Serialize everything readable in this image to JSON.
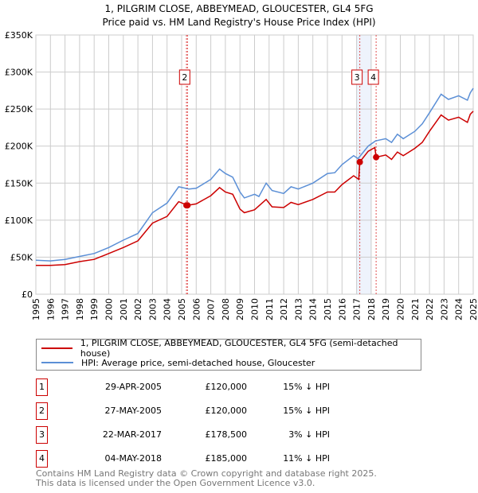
{
  "title": "1, PILGRIM CLOSE, ABBEYMEAD, GLOUCESTER, GL4 5FG",
  "subtitle": "Price paid vs. HM Land Registry's House Price Index (HPI)",
  "chart_data": {
    "type": "line",
    "ylim": [
      0,
      350000
    ],
    "xlim": [
      1995,
      2025
    ],
    "y_ticks": [
      0,
      50000,
      100000,
      150000,
      200000,
      250000,
      300000,
      350000
    ],
    "y_tick_labels": [
      "£0",
      "£50K",
      "£100K",
      "£150K",
      "£200K",
      "£250K",
      "£300K",
      "£350K"
    ],
    "x_ticks": [
      "1995",
      "1996",
      "1997",
      "1998",
      "1999",
      "2000",
      "2001",
      "2002",
      "2003",
      "2004",
      "2005",
      "2006",
      "2007",
      "2008",
      "2009",
      "2010",
      "2011",
      "2012",
      "2013",
      "2014",
      "2015",
      "2016",
      "2017",
      "2018",
      "2019",
      "2020",
      "2021",
      "2022",
      "2023",
      "2024",
      "2025"
    ],
    "grid": true,
    "colors": {
      "property": "#cc0000",
      "hpi": "#5b8fd6",
      "band": "#eef3fc",
      "marker_line": "#e05050"
    },
    "series": [
      {
        "name": "1, PILGRIM CLOSE, ABBEYMEAD, GLOUCESTER, GL4 5FG (semi-detached house)",
        "x": [
          1995,
          1996,
          1997,
          1998,
          1999,
          2000,
          2001,
          2002,
          2003,
          2004,
          2004.8,
          2005.4,
          2006,
          2007,
          2007.6,
          2008,
          2008.5,
          2009,
          2009.3,
          2010,
          2010.8,
          2011.2,
          2012,
          2012.5,
          2013,
          2014,
          2015,
          2015.5,
          2016,
          2016.8,
          2017.15,
          2017.22,
          2017.8,
          2018.25,
          2018.34,
          2019,
          2019.4,
          2019.8,
          2020.2,
          2021,
          2021.5,
          2022,
          2022.8,
          2023.3,
          2024,
          2024.6,
          2024.8,
          2025
        ],
        "y": [
          39000,
          39000,
          40000,
          44000,
          47000,
          55000,
          63000,
          72000,
          96000,
          105000,
          125000,
          120000,
          122000,
          133000,
          144000,
          138000,
          135000,
          115000,
          110000,
          114000,
          128000,
          118000,
          117000,
          124000,
          121000,
          128000,
          138000,
          138000,
          148000,
          160000,
          155000,
          178500,
          193000,
          198000,
          185000,
          188000,
          182000,
          192000,
          187000,
          197000,
          205000,
          220000,
          242000,
          235000,
          239000,
          232000,
          243000,
          247000
        ]
      },
      {
        "name": "HPI: Average price, semi-detached house, Gloucester",
        "x": [
          1995,
          1996,
          1997,
          1998,
          1999,
          2000,
          2001,
          2002,
          2003,
          2004,
          2004.8,
          2005.5,
          2006,
          2007,
          2007.6,
          2008,
          2008.5,
          2009,
          2009.3,
          2010,
          2010.3,
          2010.8,
          2011.2,
          2012,
          2012.5,
          2013,
          2014,
          2015,
          2015.5,
          2016,
          2016.8,
          2017.1,
          2017.8,
          2018.3,
          2019,
          2019.4,
          2019.8,
          2020.2,
          2021,
          2021.5,
          2022,
          2022.8,
          2023.3,
          2024,
          2024.6,
          2024.8,
          2025
        ],
        "y": [
          46000,
          45000,
          47000,
          51000,
          55000,
          63000,
          73000,
          82000,
          110000,
          123000,
          145000,
          142000,
          143000,
          155000,
          169000,
          163000,
          158000,
          138000,
          130000,
          135000,
          132000,
          150000,
          140000,
          136000,
          145000,
          142000,
          150000,
          163000,
          164000,
          175000,
          187000,
          183000,
          200000,
          207000,
          210000,
          205000,
          216000,
          210000,
          220000,
          230000,
          245000,
          270000,
          263000,
          268000,
          262000,
          272000,
          278000
        ]
      }
    ],
    "sales": [
      {
        "id": "1",
        "date": "29-APR-2005",
        "x": 2005.33,
        "price": "£120,000",
        "value": 120000,
        "hpi": "15% ↓ HPI",
        "show_label": false
      },
      {
        "id": "2",
        "date": "27-MAY-2005",
        "x": 2005.4,
        "price": "£120,000",
        "value": 120000,
        "hpi": "15% ↓ HPI",
        "show_label": true
      },
      {
        "id": "3",
        "date": "22-MAR-2017",
        "x": 2017.22,
        "price": "£178,500",
        "value": 178500,
        "hpi": "3% ↓ HPI",
        "show_label": true
      },
      {
        "id": "4",
        "date": "04-MAY-2018",
        "x": 2018.34,
        "price": "£185,000",
        "value": 185000,
        "hpi": "11% ↓ HPI",
        "show_label": true
      }
    ],
    "band": [
      2017.0,
      2018.0
    ]
  },
  "footer": {
    "line1": "Contains HM Land Registry data © Crown copyright and database right 2025.",
    "line2": "This data is licensed under the Open Government Licence v3.0."
  }
}
